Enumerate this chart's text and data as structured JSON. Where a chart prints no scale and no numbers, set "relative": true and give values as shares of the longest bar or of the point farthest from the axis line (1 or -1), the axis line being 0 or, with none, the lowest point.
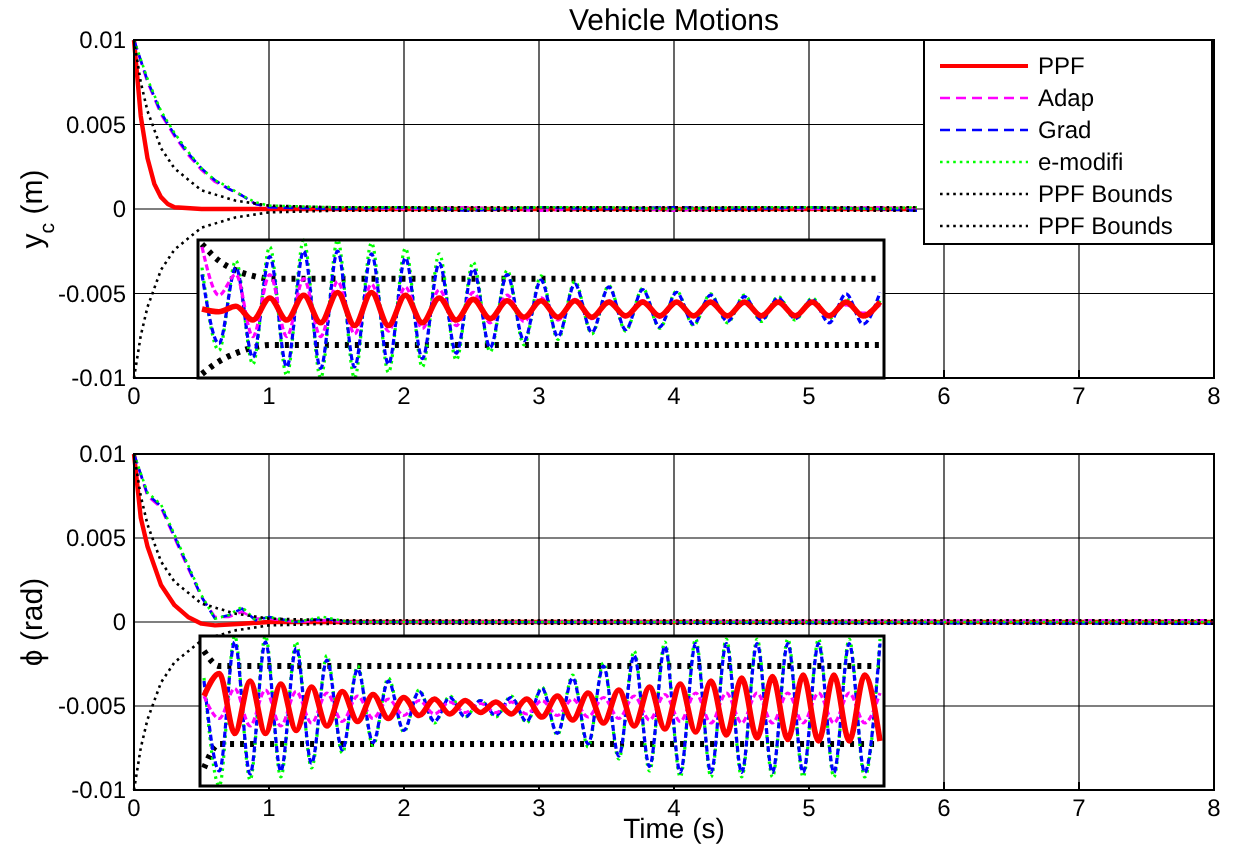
{
  "chart_data": [
    {
      "type": "line",
      "title": "Vehicle Motions",
      "ylabel": "y$_{c}$ (m)",
      "xlim": [
        0,
        8
      ],
      "ylim": [
        -0.01,
        0.01
      ],
      "xticks": [
        0,
        1,
        2,
        3,
        4,
        5,
        6,
        7,
        8
      ],
      "yticks": [
        -0.01,
        -0.005,
        0,
        0.005,
        0.01
      ],
      "grid": true,
      "legend": "top right",
      "series": [
        {
          "name": "PPF",
          "color": "#ff0000",
          "line_style": "solid",
          "x": [
            0,
            0.05,
            0.1,
            0.15,
            0.2,
            0.25,
            0.3,
            0.5,
            1,
            5.8
          ],
          "values": [
            0.01,
            0.0055,
            0.003,
            0.0015,
            0.0007,
            0.0003,
            0.0001,
            0,
            0,
            0
          ]
        },
        {
          "name": "Adap",
          "color": "#ff00ff",
          "line_style": "dashed",
          "x": [
            0,
            0.1,
            0.2,
            0.3,
            0.4,
            0.5,
            0.6,
            0.7,
            0.8,
            0.9,
            1,
            1.5,
            2,
            2.5,
            3,
            3.5,
            4,
            4.5,
            5,
            5.5,
            5.8
          ],
          "values": [
            0.01,
            0.0075,
            0.0056,
            0.0043,
            0.0032,
            0.0023,
            0.0016,
            0.0012,
            0.0008,
            0.0003,
            0.0001,
            0.0001,
            0,
            0.0001,
            -0.0001,
            0.0001,
            -0.0001,
            0.0001,
            0,
            0.0001,
            0
          ]
        },
        {
          "name": "Grad",
          "color": "#0000ff",
          "line_style": "dashed",
          "x": [
            0,
            0.1,
            0.2,
            0.3,
            0.4,
            0.5,
            0.6,
            0.7,
            0.8,
            0.9,
            1,
            1.5,
            2,
            2.5,
            3,
            3.5,
            4,
            4.5,
            5,
            5.5,
            5.8
          ],
          "values": [
            0.01,
            0.0076,
            0.0057,
            0.0044,
            0.0033,
            0.0024,
            0.0017,
            0.0012,
            0.0008,
            0.0003,
            0.0001,
            0,
            0.0001,
            -0.0001,
            0.0001,
            0,
            0.0001,
            0,
            0.0001,
            0,
            -0.0001
          ]
        },
        {
          "name": "e-modifi",
          "color": "#00ff00",
          "line_style": "dotted",
          "x": [
            0,
            0.1,
            0.2,
            0.3,
            0.4,
            0.5,
            0.6,
            0.7,
            0.8,
            0.9,
            1,
            1.5,
            2,
            2.5,
            3,
            3.5,
            4,
            4.5,
            5,
            5.5,
            5.8
          ],
          "values": [
            0.01,
            0.0077,
            0.0058,
            0.0045,
            0.0034,
            0.0024,
            0.0017,
            0.0013,
            0.0008,
            0.0004,
            0.0002,
            0.0001,
            0.0001,
            0,
            0.0001,
            0.0001,
            0,
            0.0001,
            0.0001,
            0,
            0.0001
          ]
        },
        {
          "name": "PPF Bounds",
          "color": "#000000",
          "line_style": "dotted",
          "x": [
            0,
            0.05,
            0.1,
            0.2,
            0.3,
            0.5,
            0.75,
            1,
            1.5,
            5.8
          ],
          "values": [
            0.01,
            0.0075,
            0.0058,
            0.0036,
            0.0024,
            0.0011,
            0.0005,
            0.0002,
            0.0001,
            0.0001
          ]
        },
        {
          "name": "PPF Bounds",
          "color": "#000000",
          "line_style": "dotted",
          "x": [
            0,
            0.05,
            0.1,
            0.2,
            0.3,
            0.5,
            0.75,
            1,
            1.5,
            5.8
          ],
          "values": [
            -0.01,
            -0.0075,
            -0.0058,
            -0.0036,
            -0.0024,
            -0.0011,
            -0.0005,
            -0.0002,
            -0.0001,
            -0.0001
          ]
        }
      ]
    },
    {
      "type": "line",
      "ylabel": "ϕ (rad)",
      "xlabel": "Time (s)",
      "xlim": [
        0,
        8
      ],
      "ylim": [
        -0.01,
        0.01
      ],
      "xticks": [
        0,
        1,
        2,
        3,
        4,
        5,
        6,
        7,
        8
      ],
      "yticks": [
        -0.01,
        -0.005,
        0,
        0.005,
        0.01
      ],
      "grid": true,
      "series": [
        {
          "color": "#ff0000",
          "line_style": "solid",
          "x": [
            0,
            0.05,
            0.1,
            0.2,
            0.3,
            0.4,
            0.5,
            0.6,
            0.8,
            1,
            8
          ],
          "values": [
            0.01,
            0.0062,
            0.0045,
            0.0022,
            0.001,
            0.0003,
            -0.0001,
            -0.0002,
            -0.0001,
            0,
            0
          ]
        },
        {
          "color": "#ff00ff",
          "line_style": "dashed",
          "x": [
            0,
            0.1,
            0.2,
            0.3,
            0.4,
            0.5,
            0.6,
            0.7,
            0.8,
            0.9,
            1,
            1.2,
            1.4,
            1.6,
            2,
            8
          ],
          "values": [
            0.01,
            0.0075,
            0.0068,
            0.005,
            0.0032,
            0.0015,
            0.0003,
            0.0003,
            0.0006,
            0.0002,
            0.0002,
            0,
            0.0001,
            0,
            0,
            0.0001
          ]
        },
        {
          "color": "#0000ff",
          "line_style": "dashed",
          "x": [
            0,
            0.1,
            0.2,
            0.3,
            0.4,
            0.5,
            0.6,
            0.7,
            0.8,
            0.9,
            1,
            1.2,
            1.4,
            1.6,
            2,
            8
          ],
          "values": [
            0.01,
            0.0076,
            0.0069,
            0.0051,
            0.0033,
            0.0015,
            0.0002,
            0.0004,
            0.0008,
            0.0001,
            0.0003,
            0,
            0.0002,
            0,
            0,
            -0.0001
          ]
        },
        {
          "color": "#00ff00",
          "line_style": "dotted",
          "x": [
            0,
            0.1,
            0.2,
            0.3,
            0.4,
            0.5,
            0.6,
            0.7,
            0.8,
            0.9,
            1,
            1.2,
            1.4,
            1.6,
            2,
            8
          ],
          "values": [
            0.01,
            0.0077,
            0.007,
            0.0052,
            0.0034,
            0.0016,
            0.0002,
            0.0004,
            0.0009,
            0.0001,
            0.0003,
            0,
            0.0003,
            0,
            0,
            0
          ]
        },
        {
          "color": "#000000",
          "line_style": "dotted",
          "x": [
            0,
            0.05,
            0.1,
            0.2,
            0.3,
            0.5,
            0.75,
            1,
            1.5,
            8
          ],
          "values": [
            0.01,
            0.0075,
            0.0058,
            0.0036,
            0.0024,
            0.0011,
            0.0005,
            0.0002,
            0.0001,
            0.0001
          ]
        },
        {
          "color": "#000000",
          "line_style": "dotted",
          "x": [
            0,
            0.05,
            0.1,
            0.2,
            0.3,
            0.5,
            0.75,
            1,
            1.5,
            8
          ],
          "values": [
            -0.01,
            -0.0075,
            -0.0058,
            -0.0036,
            -0.0024,
            -0.0011,
            -0.0005,
            -0.0002,
            -0.0001,
            -0.0001
          ]
        }
      ]
    },
    {
      "type": "line",
      "relative": true,
      "categories": [
        null,
        null,
        null,
        null,
        null,
        null,
        null,
        null,
        null,
        null,
        null,
        null,
        null,
        null,
        null,
        null,
        null,
        null,
        null,
        null,
        null,
        null,
        null,
        null,
        null,
        null,
        null,
        null,
        null,
        null,
        null,
        null,
        null,
        null,
        null,
        null,
        null,
        null,
        null,
        null,
        null
      ],
      "series": [
        {
          "color": "#000000",
          "line_style": "dotted",
          "values": [
            0.97,
            0.85,
            0.78,
            0.74,
            0.72,
            0.72,
            0.72,
            0.72,
            0.72,
            0.72,
            0.72,
            0.72,
            0.72,
            0.72,
            0.72,
            0.72,
            0.72,
            0.72,
            0.72,
            0.72,
            0.72,
            0.72,
            0.72,
            0.72,
            0.72,
            0.72,
            0.72,
            0.72,
            0.72,
            0.72,
            0.72,
            0.72,
            0.72,
            0.72,
            0.72,
            0.72,
            0.72,
            0.72,
            0.72,
            0.72,
            0.72
          ]
        },
        {
          "color": "#000000",
          "line_style": "dotted",
          "values": [
            0.03,
            0.12,
            0.18,
            0.22,
            0.24,
            0.24,
            0.24,
            0.24,
            0.24,
            0.24,
            0.24,
            0.24,
            0.24,
            0.24,
            0.24,
            0.24,
            0.24,
            0.24,
            0.24,
            0.24,
            0.24,
            0.24,
            0.24,
            0.24,
            0.24,
            0.24,
            0.24,
            0.24,
            0.24,
            0.24,
            0.24,
            0.24,
            0.24,
            0.24,
            0.24,
            0.24,
            0.24,
            0.24,
            0.24,
            0.24,
            0.24
          ]
        },
        {
          "color": "#00ff00",
          "line_style": "dotted",
          "values": [
            0.8,
            0.2,
            0.85,
            0.1,
            0.95,
            0.02,
            1.0,
            0.0,
            1.0,
            0.0,
            0.98,
            0.04,
            0.94,
            0.08,
            0.9,
            0.13,
            0.84,
            0.19,
            0.78,
            0.24,
            0.74,
            0.28,
            0.7,
            0.32,
            0.67,
            0.34,
            0.65,
            0.36,
            0.63,
            0.38,
            0.61,
            0.4,
            0.6,
            0.41,
            0.59,
            0.42,
            0.58,
            0.43,
            0.57,
            0.44,
            0.56
          ]
        },
        {
          "color": "#0000ff",
          "line_style": "dashed",
          "values": [
            0.75,
            0.25,
            0.8,
            0.15,
            0.88,
            0.08,
            0.92,
            0.07,
            0.92,
            0.08,
            0.9,
            0.1,
            0.87,
            0.14,
            0.83,
            0.18,
            0.79,
            0.22,
            0.75,
            0.27,
            0.71,
            0.3,
            0.68,
            0.33,
            0.66,
            0.35,
            0.64,
            0.37,
            0.62,
            0.39,
            0.6,
            0.41,
            0.59,
            0.42,
            0.58,
            0.43,
            0.57,
            0.4,
            0.61,
            0.39,
            0.62
          ]
        },
        {
          "color": "#ff00ff",
          "line_style": "dashed",
          "values": [
            0.95,
            0.6,
            0.75,
            0.3,
            0.75,
            0.3,
            0.72,
            0.3,
            0.7,
            0.32,
            0.68,
            0.34,
            0.66,
            0.36,
            0.64,
            0.38,
            0.62,
            0.4,
            0.6,
            0.41,
            0.58,
            0.42,
            0.57,
            0.43,
            0.56,
            0.44,
            0.56,
            0.44,
            0.55,
            0.45,
            0.55,
            0.45,
            0.54,
            0.46,
            0.54,
            0.46,
            0.54,
            0.46,
            0.53,
            0.47,
            0.53
          ]
        },
        {
          "color": "#ff0000",
          "line_style": "solid",
          "values": [
            0.5,
            0.48,
            0.52,
            0.42,
            0.58,
            0.42,
            0.6,
            0.4,
            0.62,
            0.38,
            0.62,
            0.38,
            0.6,
            0.4,
            0.58,
            0.42,
            0.57,
            0.43,
            0.56,
            0.44,
            0.56,
            0.44,
            0.56,
            0.44,
            0.55,
            0.45,
            0.55,
            0.45,
            0.55,
            0.45,
            0.55,
            0.45,
            0.55,
            0.45,
            0.55,
            0.45,
            0.55,
            0.45,
            0.55,
            0.45,
            0.55
          ]
        }
      ]
    },
    {
      "type": "line",
      "relative": true,
      "categories": [
        null,
        null,
        null,
        null,
        null,
        null,
        null,
        null,
        null,
        null,
        null,
        null,
        null,
        null,
        null,
        null,
        null,
        null,
        null,
        null,
        null,
        null,
        null,
        null,
        null,
        null,
        null,
        null,
        null,
        null,
        null,
        null,
        null,
        null,
        null,
        null,
        null,
        null,
        null,
        null,
        null,
        null,
        null,
        null,
        null
      ],
      "series": [
        {
          "color": "#000000",
          "line_style": "dotted",
          "values": [
            0.9,
            0.8,
            0.8,
            0.8,
            0.8,
            0.8,
            0.8,
            0.8,
            0.8,
            0.8,
            0.8,
            0.8,
            0.8,
            0.8,
            0.8,
            0.8,
            0.8,
            0.8,
            0.8,
            0.8,
            0.8,
            0.8,
            0.8,
            0.8,
            0.8,
            0.8,
            0.8,
            0.8,
            0.8,
            0.8,
            0.8,
            0.8,
            0.8,
            0.8,
            0.8,
            0.8,
            0.8,
            0.8,
            0.8,
            0.8,
            0.8,
            0.8,
            0.8,
            0.8,
            0.8
          ]
        },
        {
          "color": "#000000",
          "line_style": "dotted",
          "values": [
            0.12,
            0.28,
            0.28,
            0.28,
            0.28,
            0.28,
            0.28,
            0.28,
            0.28,
            0.28,
            0.28,
            0.28,
            0.28,
            0.28,
            0.28,
            0.28,
            0.28,
            0.28,
            0.28,
            0.28,
            0.28,
            0.28,
            0.28,
            0.28,
            0.28,
            0.28,
            0.28,
            0.28,
            0.28,
            0.28,
            0.28,
            0.28,
            0.28,
            0.28,
            0.28,
            0.28,
            0.28,
            0.28,
            0.28,
            0.28,
            0.28,
            0.28,
            0.28,
            0.28,
            0.28
          ]
        },
        {
          "color": "#00ff00",
          "line_style": "dotted",
          "values": [
            0.72,
            0.0,
            1.0,
            0.04,
            1.0,
            0.06,
            0.96,
            0.12,
            0.87,
            0.22,
            0.8,
            0.27,
            0.72,
            0.36,
            0.64,
            0.42,
            0.6,
            0.46,
            0.57,
            0.46,
            0.6,
            0.42,
            0.66,
            0.34,
            0.74,
            0.26,
            0.82,
            0.18,
            0.9,
            0.1,
            0.96,
            0.06,
            0.98,
            0.06,
            0.98,
            0.06,
            0.98,
            0.06,
            0.98,
            0.06,
            0.98,
            0.06,
            0.98,
            0.06,
            0.98
          ]
        },
        {
          "color": "#0000ff",
          "line_style": "dashed",
          "values": [
            0.7,
            0.1,
            0.96,
            0.08,
            0.96,
            0.1,
            0.92,
            0.15,
            0.84,
            0.24,
            0.78,
            0.29,
            0.7,
            0.37,
            0.63,
            0.43,
            0.59,
            0.46,
            0.57,
            0.47,
            0.59,
            0.43,
            0.65,
            0.35,
            0.72,
            0.28,
            0.8,
            0.2,
            0.87,
            0.13,
            0.93,
            0.09,
            0.95,
            0.09,
            0.95,
            0.09,
            0.95,
            0.09,
            0.95,
            0.09,
            0.95,
            0.09,
            0.95,
            0.09,
            0.95
          ]
        },
        {
          "color": "#ff00ff",
          "line_style": "dashed",
          "values": [
            0.6,
            0.45,
            0.65,
            0.4,
            0.64,
            0.4,
            0.63,
            0.42,
            0.62,
            0.43,
            0.6,
            0.45,
            0.58,
            0.47,
            0.57,
            0.48,
            0.56,
            0.49,
            0.55,
            0.49,
            0.56,
            0.48,
            0.57,
            0.47,
            0.58,
            0.46,
            0.59,
            0.45,
            0.6,
            0.44,
            0.61,
            0.43,
            0.62,
            0.42,
            0.62,
            0.42,
            0.62,
            0.42,
            0.62,
            0.42,
            0.62,
            0.42,
            0.62,
            0.42,
            0.62
          ]
        },
        {
          "color": "#ff0000",
          "line_style": "solid",
          "values": [
            0.6,
            0.75,
            0.35,
            0.7,
            0.35,
            0.68,
            0.37,
            0.66,
            0.4,
            0.63,
            0.43,
            0.61,
            0.45,
            0.59,
            0.47,
            0.58,
            0.48,
            0.57,
            0.49,
            0.56,
            0.48,
            0.58,
            0.46,
            0.6,
            0.44,
            0.62,
            0.42,
            0.64,
            0.4,
            0.66,
            0.38,
            0.68,
            0.36,
            0.7,
            0.34,
            0.72,
            0.32,
            0.73,
            0.31,
            0.74,
            0.3,
            0.74,
            0.3,
            0.74,
            0.3
          ]
        }
      ]
    }
  ]
}
